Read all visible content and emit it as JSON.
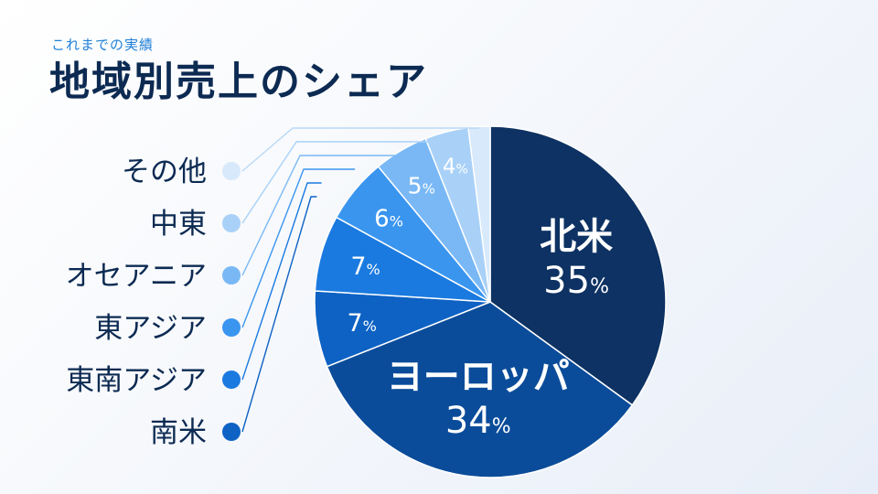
{
  "header": {
    "subtitle": "これまでの実績",
    "title": "地域別売上のシェア"
  },
  "chart_data": {
    "type": "pie",
    "title": "地域別売上のシェア",
    "subtitle": "これまでの実績",
    "unit": "%",
    "legend_position": "left",
    "slices": [
      {
        "name": "北米",
        "value": 35,
        "color": "#0d3263",
        "label_color": "#ffffff"
      },
      {
        "name": "ヨーロッパ",
        "value": 34,
        "color": "#0b4c9a",
        "label_color": "#ffffff"
      },
      {
        "name": "南米",
        "value": 7,
        "color": "#0d62c4",
        "label_color": "#ffffff"
      },
      {
        "name": "東南アジア",
        "value": 7,
        "color": "#1a7ae0",
        "label_color": "#ffffff"
      },
      {
        "name": "東アジア",
        "value": 6,
        "color": "#3a95ef",
        "label_color": "#ffffff"
      },
      {
        "name": "オセアニア",
        "value": 5,
        "color": "#79b8f5",
        "label_color": "#ffffff"
      },
      {
        "name": "中東",
        "value": 4,
        "color": "#a9d1f8",
        "label_color": "#ffffff"
      },
      {
        "name": "その他",
        "value": 2,
        "color": "#d7e9fb",
        "label_color": "#0c2a52"
      }
    ],
    "legend_order": [
      "その他",
      "中東",
      "オセアニア",
      "東アジア",
      "東南アジア",
      "南米"
    ]
  }
}
